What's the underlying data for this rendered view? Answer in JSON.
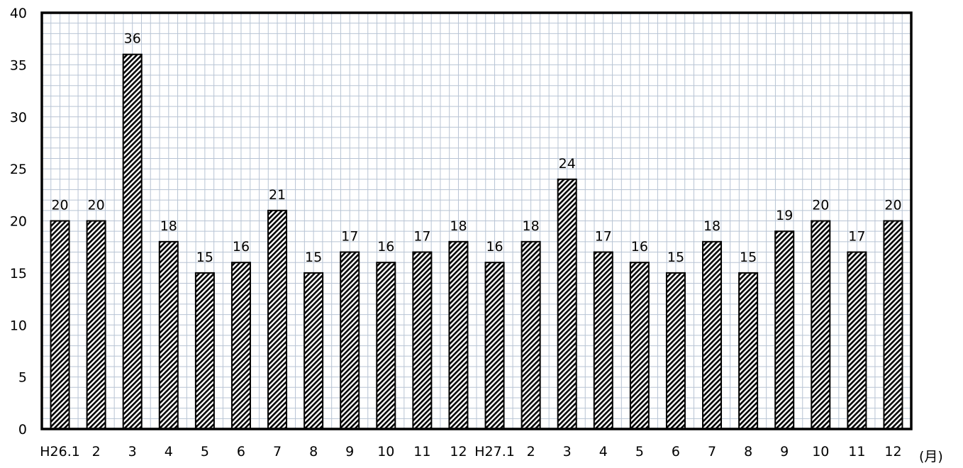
{
  "chart_data": {
    "type": "bar",
    "title": "",
    "xlabel": "",
    "ylabel": "",
    "x_unit": "(月)",
    "categories": [
      "H26.1",
      "2",
      "3",
      "4",
      "5",
      "6",
      "7",
      "8",
      "9",
      "10",
      "11",
      "12",
      "H27.1",
      "2",
      "3",
      "4",
      "5",
      "6",
      "7",
      "8",
      "9",
      "10",
      "11",
      "12"
    ],
    "values": [
      20,
      20,
      36,
      18,
      15,
      16,
      21,
      15,
      17,
      16,
      17,
      18,
      16,
      18,
      24,
      17,
      16,
      15,
      18,
      15,
      19,
      20,
      17,
      20
    ],
    "data_labels": [
      "20",
      "20",
      "36",
      "18",
      "15",
      "16",
      "21",
      "15",
      "17",
      "16",
      "17",
      "18",
      "16",
      "18",
      "24",
      "17",
      "16",
      "15",
      "18",
      "15",
      "19",
      "20",
      "17",
      "20"
    ],
    "ylim": [
      0,
      40
    ],
    "yticks": [
      "0",
      "5",
      "10",
      "15",
      "20",
      "25",
      "30",
      "35",
      "40"
    ],
    "grid": true,
    "legend": "none",
    "bar_fill": "hatched-diagonal",
    "colors": {
      "bar_stroke": "#000000",
      "hatch_dark": "#000000",
      "hatch_light": "#ffffff",
      "grid": "#b8c4d4",
      "frame": "#000000"
    }
  }
}
